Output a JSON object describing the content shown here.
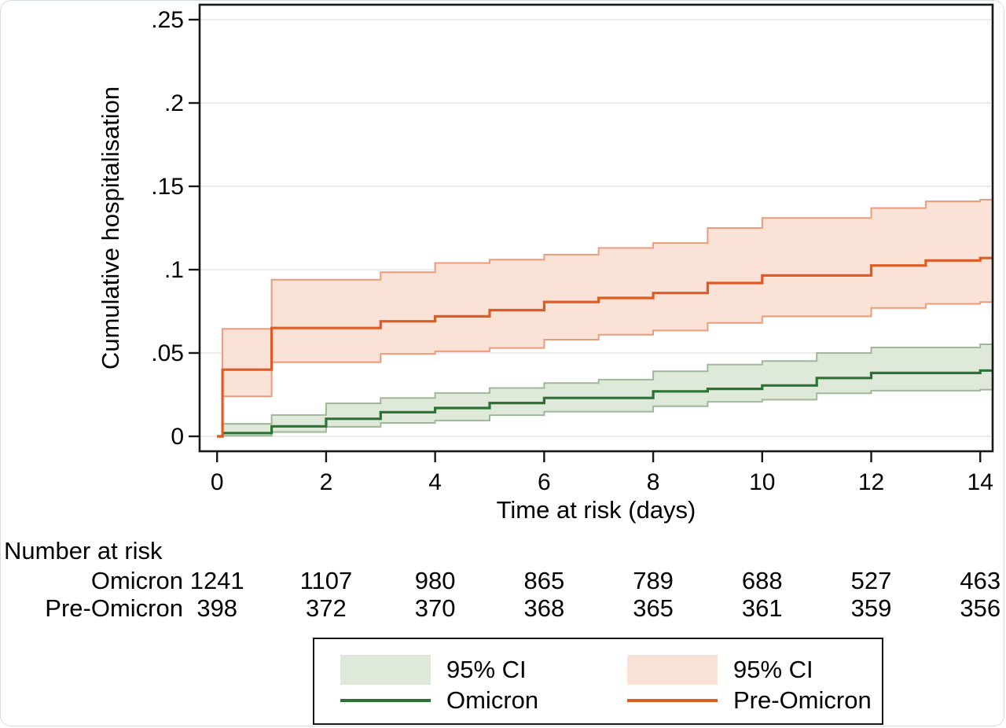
{
  "figure": {
    "kind": "Kaplan-Meier style cumulative incidence plot (Stata output)",
    "background": "#ffffff",
    "card_border": "#d8dde3"
  },
  "colors": {
    "frame": "#181818",
    "grid": "#e5e5e5",
    "text": "#000000",
    "omicron_line": "#2b7332",
    "omicron_band": "#dfe9da",
    "omicron_band_edge": "#9fb898",
    "preomicron_line": "#e05a23",
    "preomicron_band": "#fbe2d6",
    "preomicron_band_edge": "#ec9b7b"
  },
  "chart_data": {
    "type": "line",
    "subtype": "step-function cumulative incidence with 95% CI bands",
    "title": "",
    "ylabel": "Cumulative hospitalisation",
    "xlabel": "Time at risk (days)",
    "grid": "horizontal gridlines on",
    "legend_position": "bottom boxed",
    "xlim": [
      0,
      14.23
    ],
    "ylim": [
      0,
      0.259
    ],
    "xticks": [
      0,
      2,
      4,
      6,
      8,
      10,
      12,
      14
    ],
    "yticks": [
      {
        "v": 0,
        "label": "0"
      },
      {
        "v": 0.05,
        "label": ".05"
      },
      {
        "v": 0.1,
        "label": ".1"
      },
      {
        "v": 0.15,
        "label": ".15"
      },
      {
        "v": 0.2,
        "label": ".2"
      },
      {
        "v": 0.25,
        "label": ".25"
      }
    ],
    "series": [
      {
        "name": "Omicron",
        "color": "#2b7332",
        "ci_fill": "#dfe9da",
        "ci_edge": "#9fb898",
        "steps": [
          [
            0,
            0
          ],
          [
            0.1,
            0.002
          ],
          [
            1,
            0.006
          ],
          [
            2,
            0.0105
          ],
          [
            3,
            0.0145
          ],
          [
            4,
            0.017
          ],
          [
            5,
            0.02
          ],
          [
            6,
            0.023
          ],
          [
            8,
            0.027
          ],
          [
            9,
            0.0285
          ],
          [
            10,
            0.0305
          ],
          [
            11,
            0.035
          ],
          [
            12,
            0.038
          ],
          [
            14,
            0.0395
          ]
        ],
        "lower": [
          [
            0.1,
            0.0004
          ],
          [
            1,
            0.0026
          ],
          [
            2,
            0.0057
          ],
          [
            3,
            0.008
          ],
          [
            4,
            0.0095
          ],
          [
            5,
            0.0127
          ],
          [
            6,
            0.0148
          ],
          [
            8,
            0.018
          ],
          [
            9,
            0.0207
          ],
          [
            10,
            0.022
          ],
          [
            11,
            0.0258
          ],
          [
            12,
            0.0274
          ],
          [
            14,
            0.028
          ]
        ],
        "upper": [
          [
            0.1,
            0.0075
          ],
          [
            1,
            0.0128
          ],
          [
            2,
            0.0198
          ],
          [
            3,
            0.023
          ],
          [
            4,
            0.026
          ],
          [
            5,
            0.029
          ],
          [
            6,
            0.032
          ],
          [
            7,
            0.034
          ],
          [
            8,
            0.039
          ],
          [
            9,
            0.043
          ],
          [
            10,
            0.0452
          ],
          [
            11,
            0.05
          ],
          [
            12,
            0.0533
          ],
          [
            14,
            0.0552
          ]
        ]
      },
      {
        "name": "Pre-Omicron",
        "color": "#e05a23",
        "ci_fill": "#fbe2d6",
        "ci_edge": "#ec9b7b",
        "steps": [
          [
            0,
            0
          ],
          [
            0.1,
            0.04
          ],
          [
            1,
            0.065
          ],
          [
            3,
            0.069
          ],
          [
            4,
            0.072
          ],
          [
            5,
            0.0757
          ],
          [
            6,
            0.0806
          ],
          [
            7,
            0.083
          ],
          [
            8,
            0.086
          ],
          [
            9,
            0.092
          ],
          [
            10,
            0.0965
          ],
          [
            12,
            0.1025
          ],
          [
            13,
            0.1055
          ],
          [
            14,
            0.107
          ]
        ],
        "lower": [
          [
            0.1,
            0.024
          ],
          [
            1,
            0.0445
          ],
          [
            3,
            0.0495
          ],
          [
            4,
            0.051
          ],
          [
            5,
            0.053
          ],
          [
            6,
            0.058
          ],
          [
            7,
            0.061
          ],
          [
            8,
            0.0635
          ],
          [
            9,
            0.068
          ],
          [
            10,
            0.072
          ],
          [
            12,
            0.077
          ],
          [
            13,
            0.0795
          ],
          [
            14,
            0.0805
          ]
        ],
        "upper": [
          [
            0.1,
            0.0645
          ],
          [
            1,
            0.094
          ],
          [
            3,
            0.0985
          ],
          [
            4,
            0.104
          ],
          [
            5,
            0.106
          ],
          [
            6,
            0.109
          ],
          [
            7,
            0.113
          ],
          [
            8,
            0.116
          ],
          [
            9,
            0.125
          ],
          [
            10,
            0.131
          ],
          [
            12,
            0.137
          ],
          [
            13,
            0.141
          ],
          [
            14,
            0.142
          ]
        ]
      }
    ],
    "risk_table": {
      "title": "Number at risk",
      "days": [
        0,
        2,
        4,
        6,
        8,
        10,
        12,
        14
      ],
      "rows": [
        {
          "label": "Omicron",
          "values": [
            1241,
            1107,
            980,
            865,
            789,
            688,
            527,
            463
          ]
        },
        {
          "label": "Pre-Omicron",
          "values": [
            398,
            372,
            370,
            368,
            365,
            361,
            359,
            356
          ]
        }
      ]
    },
    "legend_items": [
      {
        "label": "95% CI",
        "swatch": "omicron_band"
      },
      {
        "label": "95% CI",
        "swatch": "preomicron_band"
      },
      {
        "label": "Omicron",
        "line": "omicron_line"
      },
      {
        "label": "Pre-Omicron",
        "line": "preomicron_line"
      }
    ]
  }
}
